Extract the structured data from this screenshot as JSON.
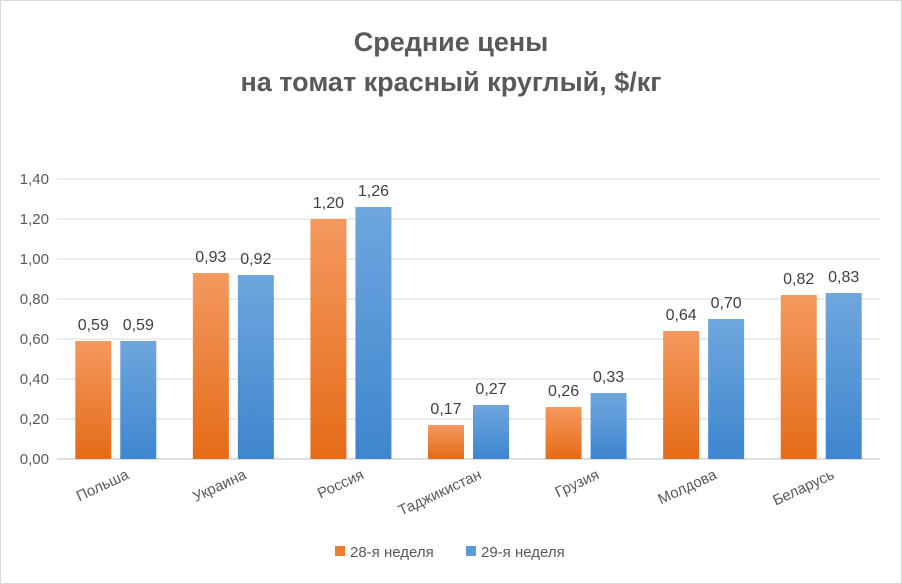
{
  "chart_data": {
    "type": "bar",
    "title": [
      "Средние цены",
      "на томат красный круглый, $/кг"
    ],
    "categories": [
      "Польша",
      "Украина",
      "Россия",
      "Таджикистан",
      "Грузия",
      "Молдова",
      "Беларусь"
    ],
    "series": [
      {
        "name": "28-я неделя",
        "values": [
          0.59,
          0.93,
          1.2,
          0.17,
          0.26,
          0.64,
          0.82
        ],
        "labels": [
          "0,59",
          "0,93",
          "1,20",
          "0,17",
          "0,26",
          "0,64",
          "0,82"
        ],
        "color": "#ED7D31"
      },
      {
        "name": "29-я неделя",
        "values": [
          0.59,
          0.92,
          1.26,
          0.27,
          0.33,
          0.7,
          0.83
        ],
        "labels": [
          "0,59",
          "0,92",
          "1,26",
          "0,27",
          "0,33",
          "0,70",
          "0,83"
        ],
        "color": "#5B9BD5"
      }
    ],
    "ylim": [
      0,
      1.4
    ],
    "yticks": [
      "0,00",
      "0,20",
      "0,40",
      "0,60",
      "0,80",
      "1,00",
      "1,20",
      "1,40"
    ],
    "grid": true,
    "legend": "bottom"
  }
}
